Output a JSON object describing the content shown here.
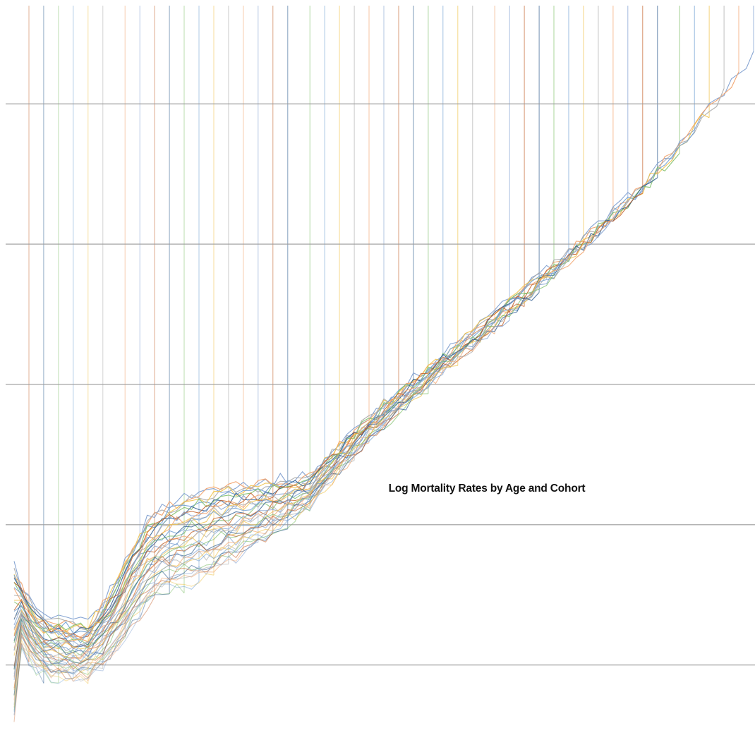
{
  "chart_data": {
    "type": "line",
    "title": "Log Mortality Rates by Age and Cohort",
    "xlabel": "",
    "ylabel": "",
    "x_axis_labels_shown": false,
    "y_axis_labels_shown": false,
    "x": [
      0,
      1,
      2,
      3,
      4,
      5,
      6,
      7,
      8,
      9,
      10,
      11,
      12,
      13,
      14,
      15,
      16,
      17,
      18,
      19,
      20,
      21,
      22,
      23,
      24,
      25,
      26,
      27,
      28,
      29,
      30,
      31,
      32,
      33,
      34,
      35,
      36,
      37,
      38,
      39,
      40,
      41,
      42,
      43,
      44,
      45,
      46,
      47,
      48,
      49,
      50,
      51,
      52,
      53,
      54,
      55,
      56,
      57,
      58,
      59,
      60,
      61,
      62,
      63,
      64,
      65,
      66,
      67,
      68,
      69,
      70,
      71,
      72,
      73,
      74,
      75,
      76,
      77,
      78,
      79,
      80,
      81,
      82,
      83,
      84,
      85,
      86,
      87,
      88,
      89,
      90,
      91,
      92,
      93,
      94,
      95,
      96,
      97,
      98,
      99,
      100
    ],
    "xlim": [
      0,
      100
    ],
    "ylim": [
      -11.2,
      -0.6
    ],
    "y_gridlines": [
      -10,
      -8,
      -6,
      -4,
      -2
    ],
    "grid": "horizontal",
    "legend": "none",
    "series_count": 48,
    "first_cohort_max_age": 100,
    "last_cohort_max_age": 2,
    "palette": [
      "#7f9fd0",
      "#f2a26a",
      "#a9a9a9",
      "#f0c34c",
      "#6e9fd2",
      "#7fbf6a",
      "#2e5c8f",
      "#c4622c"
    ],
    "curve_shape": [
      [
        0,
        -8.6
      ],
      [
        1,
        -9.4
      ],
      [
        2,
        -9.6
      ],
      [
        3,
        -9.75
      ],
      [
        4,
        -9.85
      ],
      [
        6,
        -9.9
      ],
      [
        8,
        -9.92
      ],
      [
        10,
        -9.9
      ],
      [
        12,
        -9.8
      ],
      [
        14,
        -9.6
      ],
      [
        16,
        -9.3
      ],
      [
        18,
        -9.05
      ],
      [
        20,
        -8.95
      ],
      [
        23,
        -8.9
      ],
      [
        26,
        -8.8
      ],
      [
        30,
        -8.6
      ],
      [
        34,
        -8.3
      ],
      [
        38,
        -7.9
      ],
      [
        42,
        -7.45
      ],
      [
        46,
        -7.0
      ],
      [
        50,
        -6.6
      ],
      [
        55,
        -6.15
      ],
      [
        60,
        -5.7
      ],
      [
        65,
        -5.25
      ],
      [
        70,
        -4.8
      ],
      [
        75,
        -4.35
      ],
      [
        80,
        -3.85
      ],
      [
        85,
        -3.35
      ],
      [
        90,
        -2.75
      ],
      [
        95,
        -2.1
      ],
      [
        100,
        -1.45
      ]
    ]
  }
}
